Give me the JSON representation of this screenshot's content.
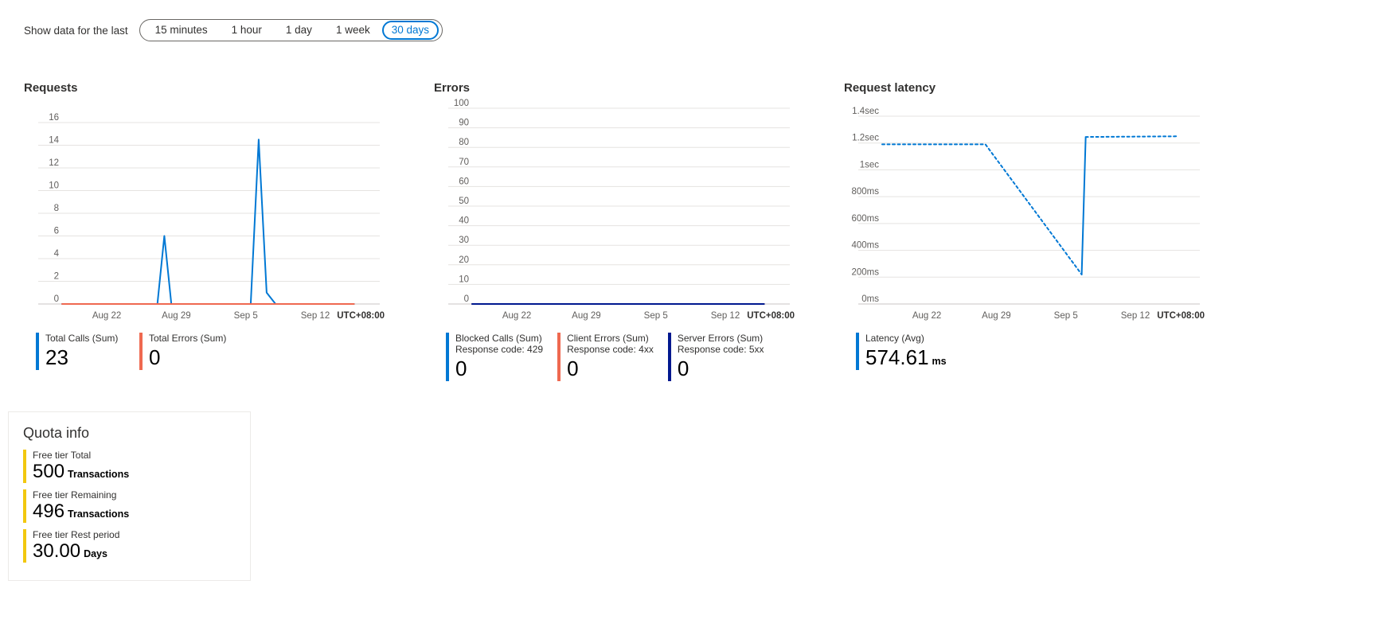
{
  "time_filter": {
    "label": "Show data for the last",
    "options": [
      "15 minutes",
      "1 hour",
      "1 day",
      "1 week",
      "30 days"
    ],
    "selected": "30 days"
  },
  "colors": {
    "accent": "#0078d4",
    "series_blue": "#0078d4",
    "series_coral": "#ef6950",
    "series_navy": "#00188f",
    "quota_yellow": "#f2c80f",
    "gridline": "#e5e3e1"
  },
  "chart_data": [
    {
      "type": "line",
      "title": "Requests",
      "timezone_label": "UTC+08:00",
      "xlim": [
        0,
        32
      ],
      "ylim": [
        0,
        16
      ],
      "y_ticks": [
        {
          "value": 16,
          "label": "16"
        },
        {
          "value": 14,
          "label": "14"
        },
        {
          "value": 12,
          "label": "12"
        },
        {
          "value": 10,
          "label": "10"
        },
        {
          "value": 8,
          "label": "8"
        },
        {
          "value": 6,
          "label": "6"
        },
        {
          "value": 4,
          "label": "4"
        },
        {
          "value": 2,
          "label": "2"
        },
        {
          "value": 0,
          "label": "0"
        }
      ],
      "x_ticks": [
        {
          "value": 4.5,
          "label": "Aug 22"
        },
        {
          "value": 11.5,
          "label": "Aug 29"
        },
        {
          "value": 18.5,
          "label": "Sep 5"
        },
        {
          "value": 25.5,
          "label": "Sep 12"
        }
      ],
      "series": [
        {
          "name": "Total Calls (Sum)",
          "color": "#0078d4",
          "style": "solid",
          "points": [
            [
              0,
              0
            ],
            [
              9.6,
              0
            ],
            [
              10.3,
              6
            ],
            [
              11.0,
              0
            ],
            [
              19.0,
              0
            ],
            [
              19.8,
              14.5
            ],
            [
              20.6,
              1
            ],
            [
              21.5,
              0
            ],
            [
              29.4,
              0
            ]
          ]
        },
        {
          "name": "Total Errors (Sum)",
          "color": "#ef6950",
          "style": "solid",
          "points": [
            [
              0,
              0
            ],
            [
              29.4,
              0
            ]
          ]
        }
      ],
      "legend": [
        {
          "label": "Total Calls (Sum)",
          "value": "23",
          "color": "#0078d4"
        },
        {
          "label": "Total Errors (Sum)",
          "value": "0",
          "color": "#ef6950"
        }
      ]
    },
    {
      "type": "line",
      "title": "Errors",
      "timezone_label": "UTC+08:00",
      "xlim": [
        0,
        32
      ],
      "ylim": [
        0,
        100
      ],
      "y_ticks": [
        {
          "value": 100,
          "label": "100"
        },
        {
          "value": 90,
          "label": "90"
        },
        {
          "value": 80,
          "label": "80"
        },
        {
          "value": 70,
          "label": "70"
        },
        {
          "value": 60,
          "label": "60"
        },
        {
          "value": 50,
          "label": "50"
        },
        {
          "value": 40,
          "label": "40"
        },
        {
          "value": 30,
          "label": "30"
        },
        {
          "value": 20,
          "label": "20"
        },
        {
          "value": 10,
          "label": "10"
        },
        {
          "value": 0,
          "label": "0"
        }
      ],
      "x_ticks": [
        {
          "value": 4.5,
          "label": "Aug 22"
        },
        {
          "value": 11.5,
          "label": "Aug 29"
        },
        {
          "value": 18.5,
          "label": "Sep 5"
        },
        {
          "value": 25.5,
          "label": "Sep 12"
        }
      ],
      "series": [
        {
          "name": "Blocked Calls (Sum)",
          "color": "#0078d4",
          "style": "solid",
          "points": [
            [
              0,
              0
            ],
            [
              29.4,
              0
            ]
          ]
        },
        {
          "name": "Client Errors (Sum)",
          "color": "#ef6950",
          "style": "solid",
          "points": [
            [
              0,
              0
            ],
            [
              29.4,
              0
            ]
          ]
        },
        {
          "name": "Server Errors (Sum)",
          "color": "#00188f",
          "style": "solid",
          "points": [
            [
              0,
              0
            ],
            [
              29.4,
              0
            ]
          ]
        }
      ],
      "legend": [
        {
          "label": "Blocked Calls (Sum)",
          "sublabel": "Response code: 429",
          "value": "0",
          "color": "#0078d4"
        },
        {
          "label": "Client Errors (Sum)",
          "sublabel": "Response code: 4xx",
          "value": "0",
          "color": "#ef6950"
        },
        {
          "label": "Server Errors (Sum)",
          "sublabel": "Response code: 5xx",
          "value": "0",
          "color": "#00188f"
        }
      ]
    },
    {
      "type": "line",
      "title": "Request latency",
      "timezone_label": "UTC+08:00",
      "xlim": [
        0,
        32
      ],
      "ylim": [
        0,
        1400
      ],
      "y_ticks": [
        {
          "value": 1400,
          "label": "1.4sec"
        },
        {
          "value": 1200,
          "label": "1.2sec"
        },
        {
          "value": 1000,
          "label": "1sec"
        },
        {
          "value": 800,
          "label": "800ms"
        },
        {
          "value": 600,
          "label": "600ms"
        },
        {
          "value": 400,
          "label": "400ms"
        },
        {
          "value": 200,
          "label": "200ms"
        },
        {
          "value": 0,
          "label": "0ms"
        }
      ],
      "x_ticks": [
        {
          "value": 4.5,
          "label": "Aug 22"
        },
        {
          "value": 11.5,
          "label": "Aug 29"
        },
        {
          "value": 18.5,
          "label": "Sep 5"
        },
        {
          "value": 25.5,
          "label": "Sep 12"
        }
      ],
      "series": [
        {
          "name": "Latency (Avg)",
          "color": "#0078d4",
          "style": "dashed",
          "points": [
            [
              0,
              1190
            ],
            [
              10.4,
              1190
            ],
            [
              20.1,
              220
            ]
          ]
        },
        {
          "name": "Latency (Avg)",
          "color": "#0078d4",
          "style": "solid",
          "points": [
            [
              20.1,
              220
            ],
            [
              20.5,
              1240
            ]
          ]
        },
        {
          "name": "Latency (Avg)",
          "color": "#0078d4",
          "style": "dashed",
          "points": [
            [
              20.5,
              1245
            ],
            [
              29.6,
              1250
            ]
          ]
        }
      ],
      "legend": [
        {
          "label": "Latency (Avg)",
          "value": "574.61",
          "unit": "ms",
          "color": "#0078d4"
        }
      ]
    }
  ],
  "quota": {
    "title": "Quota info",
    "items": [
      {
        "label": "Free tier Total",
        "value": "500",
        "unit": "Transactions"
      },
      {
        "label": "Free tier Remaining",
        "value": "496",
        "unit": "Transactions"
      },
      {
        "label": "Free tier Rest period",
        "value": "30.00",
        "unit": "Days"
      }
    ]
  }
}
